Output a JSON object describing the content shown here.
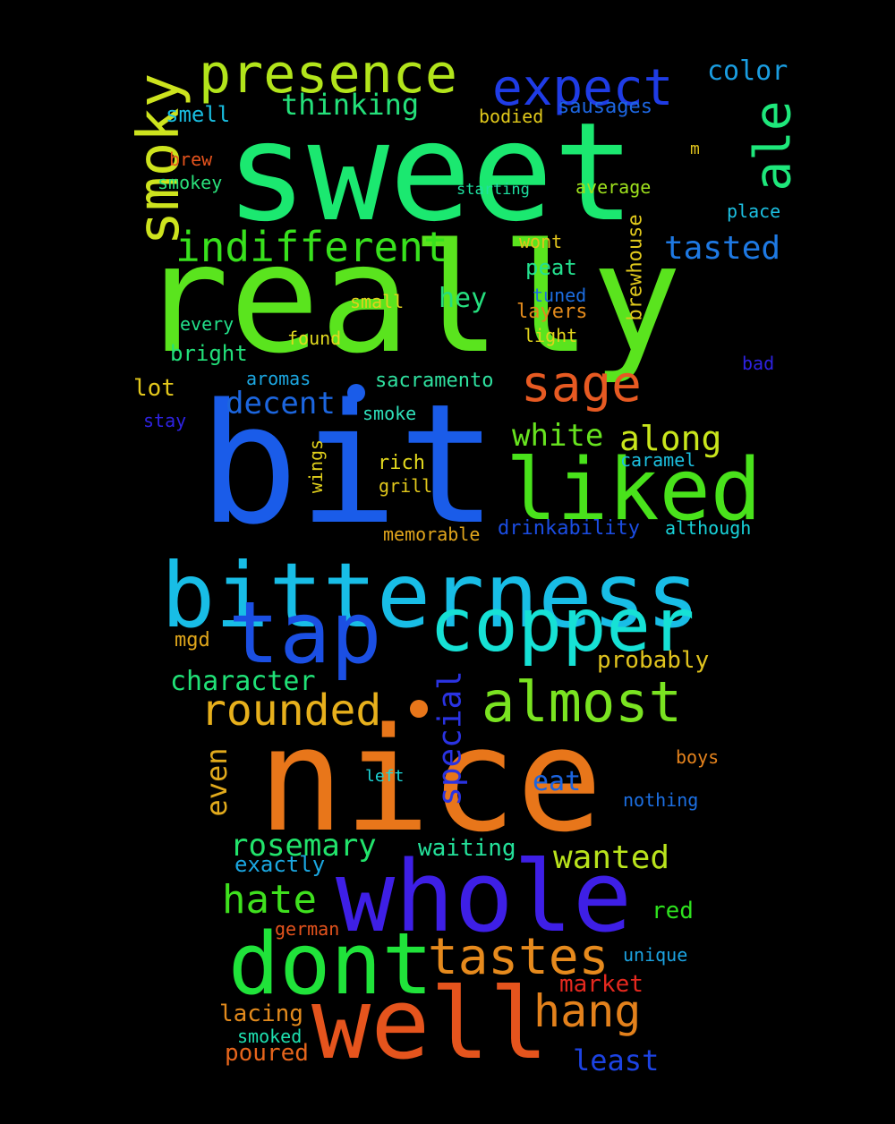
{
  "background": "#000000",
  "words": [
    {
      "text": "sweet",
      "color": "#1be870"
    },
    {
      "text": "really",
      "color": "#5ae41e"
    },
    {
      "text": "bit",
      "color": "#1a5ce9"
    },
    {
      "text": "nice",
      "color": "#e8761a"
    },
    {
      "text": "bitterness",
      "color": "#18bde6"
    },
    {
      "text": "whole",
      "color": "#3e1fe6"
    },
    {
      "text": "well",
      "color": "#e5541d"
    },
    {
      "text": "liked",
      "color": "#49e21b"
    },
    {
      "text": "copper",
      "color": "#16e1d5"
    },
    {
      "text": "tap",
      "color": "#1b4fe3"
    },
    {
      "text": "dont",
      "color": "#20e33a"
    },
    {
      "text": "presence",
      "color": "#b2e41b"
    },
    {
      "text": "smoky",
      "color": "#cde31e"
    },
    {
      "text": "expect",
      "color": "#1f3ce6"
    },
    {
      "text": "ale",
      "color": "#1ee77b"
    },
    {
      "text": "sage",
      "color": "#e75a22"
    },
    {
      "text": "almost",
      "color": "#7ae321"
    },
    {
      "text": "tastes",
      "color": "#e68a1d"
    },
    {
      "text": "hang",
      "color": "#e3811c"
    },
    {
      "text": "indifferent",
      "color": "#38e11d"
    },
    {
      "text": "rounded",
      "color": "#e7b01c"
    },
    {
      "text": "hate",
      "color": "#3fe01e"
    },
    {
      "text": "wanted",
      "color": "#b9e31c"
    },
    {
      "text": "rosemary",
      "color": "#22e36b"
    },
    {
      "text": "along",
      "color": "#c9e61c"
    },
    {
      "text": "special",
      "color": "#2a33e2"
    },
    {
      "text": "white",
      "color": "#67e31f"
    },
    {
      "text": "decent",
      "color": "#1c66df"
    },
    {
      "text": "tasted",
      "color": "#1e79e3"
    },
    {
      "text": "thinking",
      "color": "#24e07a"
    },
    {
      "text": "character",
      "color": "#20e177"
    },
    {
      "text": "even",
      "color": "#e1aa1c"
    },
    {
      "text": "least",
      "color": "#1c43e3"
    },
    {
      "text": "color",
      "color": "#1a9de0"
    },
    {
      "text": "hey",
      "color": "#25df7e"
    },
    {
      "text": "smell",
      "color": "#19bde0"
    },
    {
      "text": "eat",
      "color": "#1c65e1"
    },
    {
      "text": "waiting",
      "color": "#24e19a"
    },
    {
      "text": "red",
      "color": "#2ee11e"
    },
    {
      "text": "market",
      "color": "#e5291f"
    },
    {
      "text": "probably",
      "color": "#e0c31e"
    },
    {
      "text": "lacing",
      "color": "#e28a1d"
    },
    {
      "text": "poured",
      "color": "#e6651c"
    },
    {
      "text": "lot",
      "color": "#e2c71c"
    },
    {
      "text": "bright",
      "color": "#22e07a"
    },
    {
      "text": "exactly",
      "color": "#1ba7e1"
    },
    {
      "text": "mgd",
      "color": "#e1a71b"
    },
    {
      "text": "brewhouse",
      "color": "#e1c91c"
    },
    {
      "text": "sausages",
      "color": "#1d66e0"
    },
    {
      "text": "peat",
      "color": "#24e08f"
    },
    {
      "text": "bodied",
      "color": "#e1c91b"
    },
    {
      "text": "sacramento",
      "color": "#2fe09f"
    },
    {
      "text": "rich",
      "color": "#e2d81e"
    },
    {
      "text": "layers",
      "color": "#e28a1c"
    },
    {
      "text": "smoked",
      "color": "#1ee0b0"
    },
    {
      "text": "memorable",
      "color": "#e1a51c"
    },
    {
      "text": "drinkability",
      "color": "#1b4de3"
    },
    {
      "text": "although",
      "color": "#18d2d9"
    },
    {
      "text": "wings",
      "color": "#e1d01c"
    },
    {
      "text": "average",
      "color": "#9ee11d"
    },
    {
      "text": "smokey",
      "color": "#2ae07a"
    },
    {
      "text": "brew",
      "color": "#e5531d"
    },
    {
      "text": "small",
      "color": "#e1d11c"
    },
    {
      "text": "found",
      "color": "#e2da1f"
    },
    {
      "text": "every",
      "color": "#22e08a"
    },
    {
      "text": "aromas",
      "color": "#1ca7e1"
    },
    {
      "text": "smoke",
      "color": "#2fe0ba"
    },
    {
      "text": "grill",
      "color": "#e1c71c"
    },
    {
      "text": "caramel",
      "color": "#1cc0e0"
    },
    {
      "text": "light",
      "color": "#e1d31c"
    },
    {
      "text": "wont",
      "color": "#e1c41c"
    },
    {
      "text": "tuned",
      "color": "#1c6de0"
    },
    {
      "text": "boys",
      "color": "#e5831d"
    },
    {
      "text": "nothing",
      "color": "#1c6fe2"
    },
    {
      "text": "unique",
      "color": "#1ca3e1"
    },
    {
      "text": "german",
      "color": "#e5531d"
    },
    {
      "text": "place",
      "color": "#1cc0e2"
    },
    {
      "text": "starting",
      "color": "#1ee0a0"
    },
    {
      "text": "stay",
      "color": "#2e22e1"
    },
    {
      "text": "bad",
      "color": "#2e22e1"
    },
    {
      "text": "left",
      "color": "#1cd7d8"
    },
    {
      "text": "m",
      "color": "#e1c41c"
    }
  ]
}
